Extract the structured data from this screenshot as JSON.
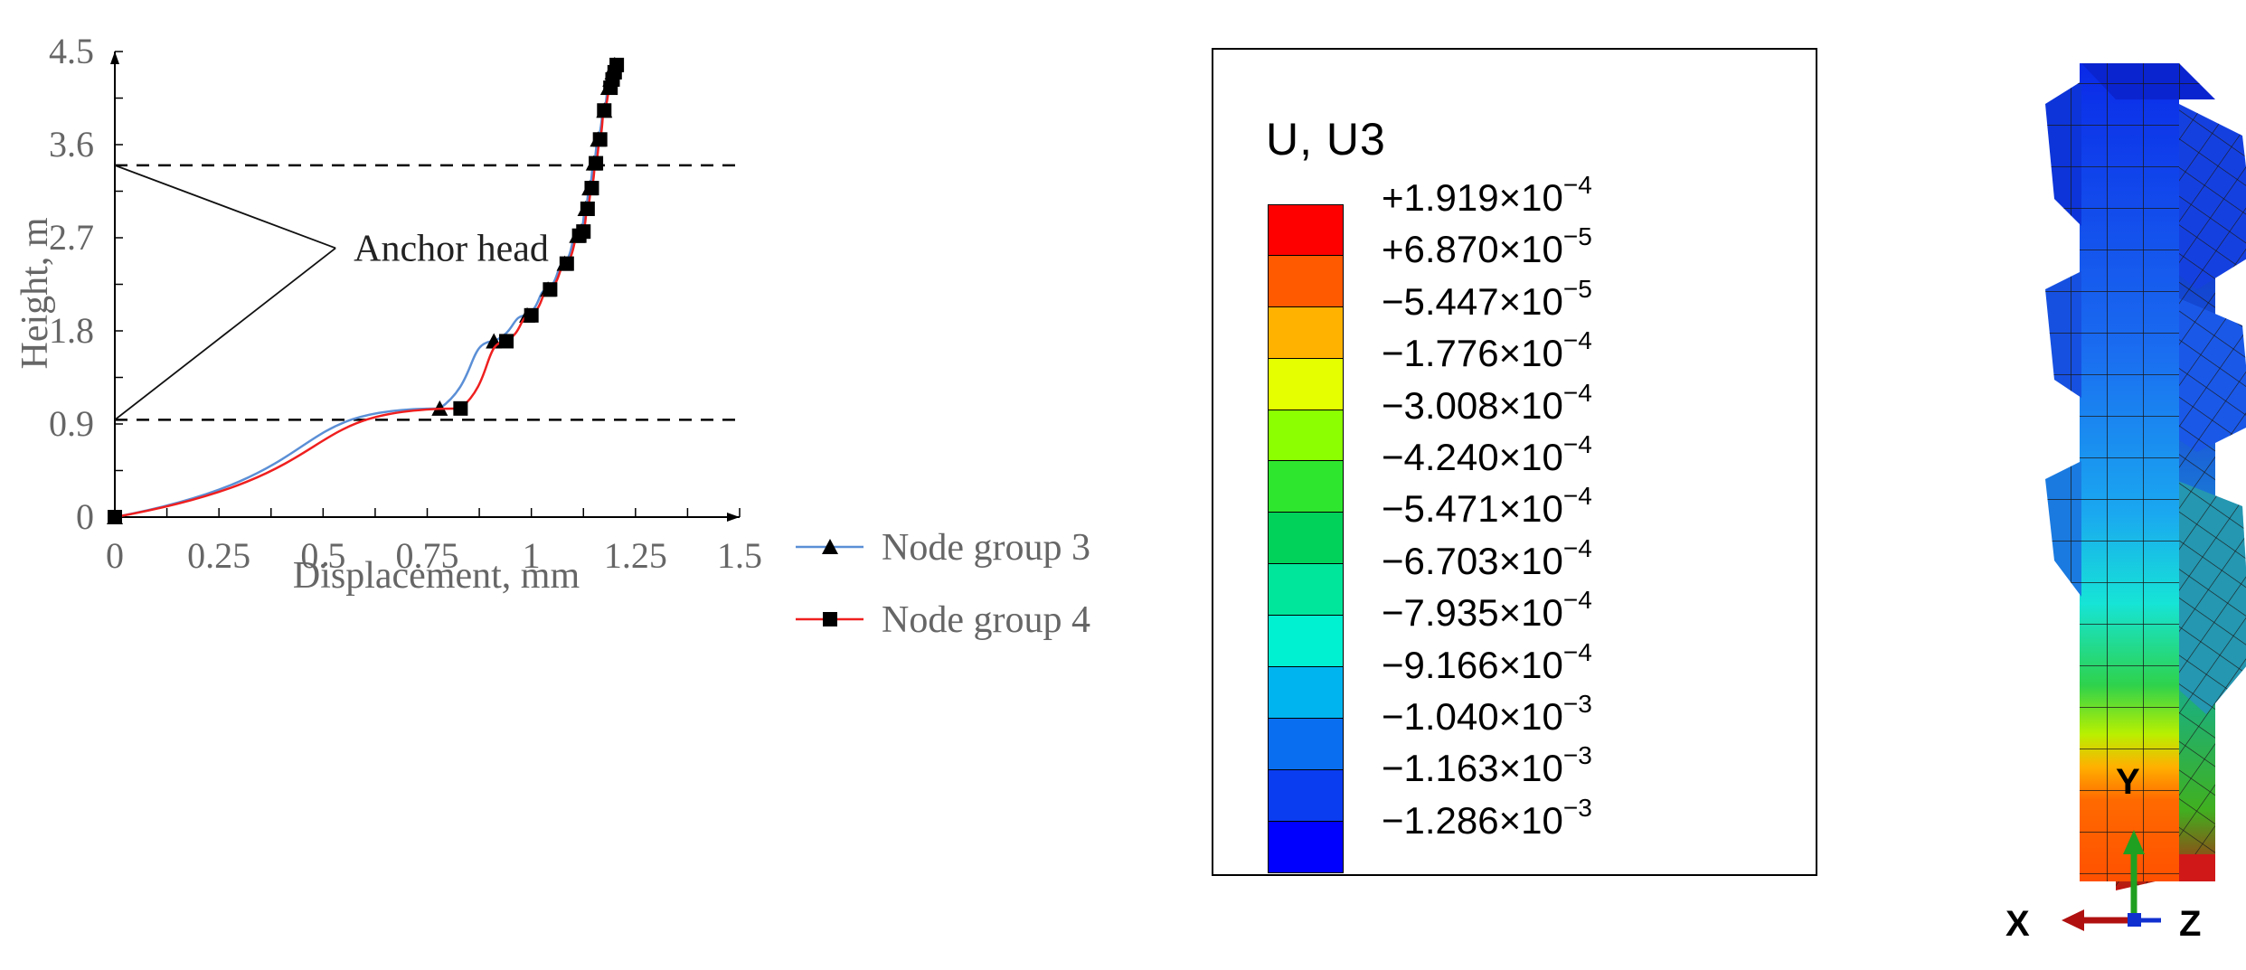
{
  "chart_data": {
    "type": "line",
    "xlabel": "Displacement, mm",
    "ylabel": "Height, m",
    "xlim": [
      0,
      1.5
    ],
    "ylim": [
      0,
      4.5
    ],
    "xticks": [
      "0",
      "0.25",
      "0.5",
      "0.75",
      "1",
      "1.25",
      "1.5"
    ],
    "yticks": [
      "0",
      "0.9",
      "1.8",
      "2.7",
      "3.6",
      "4.5"
    ],
    "xtick_values": [
      0,
      0.25,
      0.5,
      0.75,
      1,
      1.25,
      1.5
    ],
    "ytick_values": [
      0,
      0.9,
      1.8,
      2.7,
      3.6,
      4.5
    ],
    "dashed_lines_y": [
      0.94,
      3.4
    ],
    "annotation": {
      "text": "Anchor head",
      "tip": [
        0.53,
        2.6
      ],
      "ends": [
        [
          0,
          3.4
        ],
        [
          0,
          0.94
        ]
      ]
    },
    "series": [
      {
        "name": "Node group 3",
        "color": "#5b8fd6",
        "marker": "triangle",
        "x": [
          0,
          0.78,
          0.91,
          0.99,
          1.04,
          1.08,
          1.11,
          1.12,
          1.13,
          1.14,
          1.15,
          1.16,
          1.175,
          1.185,
          1.19,
          1.195,
          1.2
        ],
        "y": [
          0,
          1.05,
          1.7,
          1.95,
          2.2,
          2.45,
          2.72,
          2.76,
          2.98,
          3.18,
          3.42,
          3.65,
          3.93,
          4.15,
          4.23,
          4.3,
          4.37
        ]
      },
      {
        "name": "Node group 4",
        "color": "#ef1f1f",
        "marker": "square",
        "x": [
          0,
          0.83,
          0.94,
          1.0,
          1.045,
          1.085,
          1.115,
          1.125,
          1.135,
          1.145,
          1.155,
          1.165,
          1.175,
          1.19,
          1.195,
          1.2,
          1.205
        ],
        "y": [
          0,
          1.05,
          1.7,
          1.95,
          2.2,
          2.45,
          2.72,
          2.76,
          2.98,
          3.18,
          3.42,
          3.65,
          3.93,
          4.15,
          4.23,
          4.3,
          4.37
        ]
      }
    ]
  },
  "legend_box": {
    "title": "U, U3",
    "levels": [
      {
        "mant": "+1.919",
        "exp": "−4"
      },
      {
        "mant": "+6.870",
        "exp": "−5"
      },
      {
        "mant": "−5.447",
        "exp": "−5"
      },
      {
        "mant": "−1.776",
        "exp": "−4"
      },
      {
        "mant": "−3.008",
        "exp": "−4"
      },
      {
        "mant": "−4.240",
        "exp": "−4"
      },
      {
        "mant": "−5.471",
        "exp": "−4"
      },
      {
        "mant": "−6.703",
        "exp": "−4"
      },
      {
        "mant": "−7.935",
        "exp": "−4"
      },
      {
        "mant": "−9.166",
        "exp": "−4"
      },
      {
        "mant": "−1.040",
        "exp": "−3"
      },
      {
        "mant": "−1.163",
        "exp": "−3"
      },
      {
        "mant": "−1.286",
        "exp": "−3"
      }
    ],
    "times": "×10",
    "colors": [
      "#ff0000",
      "#ff5a00",
      "#ffb300",
      "#e6ff00",
      "#8cff00",
      "#2ee62e",
      "#00d25a",
      "#00e69a",
      "#00f0d2",
      "#00b4f0",
      "#0a6ef0",
      "#0a3cf0",
      "#0000ff"
    ]
  },
  "triad": {
    "y": "Y",
    "x": "X",
    "z": "Z"
  }
}
